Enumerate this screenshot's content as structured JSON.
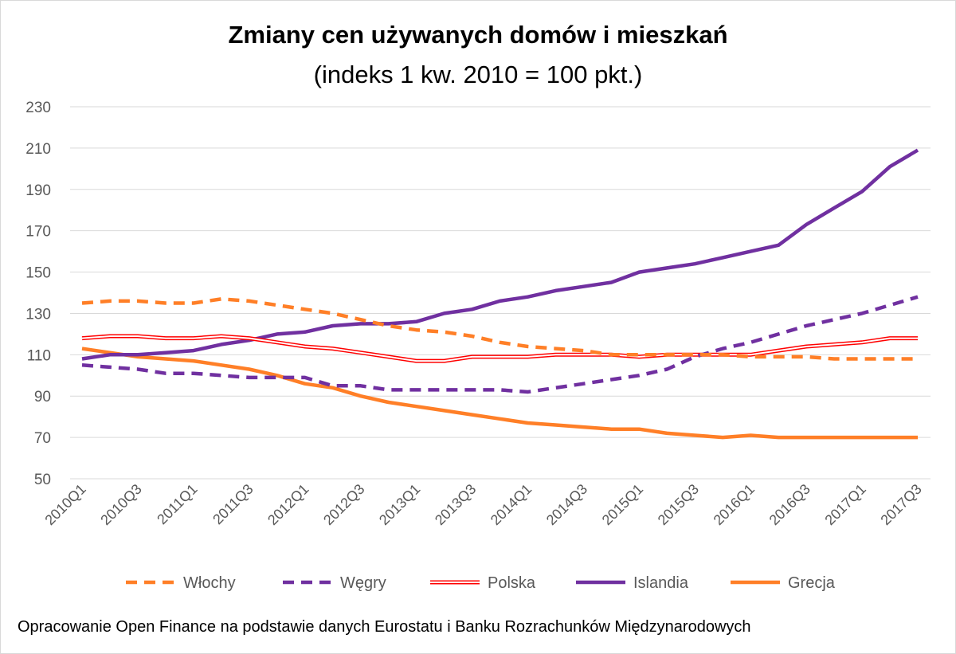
{
  "chart_data": {
    "type": "line",
    "title": "Zmiany cen używanych domów i mieszkań",
    "subtitle": "(indeks 1 kw. 2010 = 100 pkt.)",
    "source": "Opracowanie Open Finance na podstawie danych Eurostatu i Banku Rozrachunków Międzynarodowych",
    "ylim": [
      50,
      230
    ],
    "yticks": [
      50,
      70,
      90,
      110,
      130,
      150,
      170,
      190,
      210,
      230
    ],
    "grid": true,
    "legend_position": "bottom",
    "x": [
      "2010Q1",
      "2010Q2",
      "2010Q3",
      "2010Q4",
      "2011Q1",
      "2011Q2",
      "2011Q3",
      "2011Q4",
      "2012Q1",
      "2012Q2",
      "2012Q3",
      "2012Q4",
      "2013Q1",
      "2013Q2",
      "2013Q3",
      "2013Q4",
      "2014Q1",
      "2014Q2",
      "2014Q3",
      "2014Q4",
      "2015Q1",
      "2015Q2",
      "2015Q3",
      "2015Q4",
      "2016Q1",
      "2016Q2",
      "2016Q3",
      "2016Q4",
      "2017Q1",
      "2017Q2",
      "2017Q3"
    ],
    "x_tick_labels": [
      "2010Q1",
      "2010Q3",
      "2011Q1",
      "2011Q3",
      "2012Q1",
      "2012Q3",
      "2013Q1",
      "2013Q3",
      "2014Q1",
      "2014Q3",
      "2015Q1",
      "2015Q3",
      "2016Q1",
      "2016Q3",
      "2017Q1",
      "2017Q3"
    ],
    "series": [
      {
        "name": "Włochy",
        "color": "#ff7f27",
        "style": "dashed",
        "values": [
          135,
          136,
          136,
          135,
          135,
          137,
          136,
          134,
          132,
          130,
          127,
          124,
          122,
          121,
          119,
          116,
          114,
          113,
          112,
          110,
          110,
          110,
          110,
          110,
          109,
          109,
          109,
          108,
          108,
          108,
          108
        ]
      },
      {
        "name": "Węgry",
        "color": "#7030a0",
        "style": "dashed",
        "values": [
          105,
          104,
          103,
          101,
          101,
          100,
          99,
          99,
          99,
          95,
          95,
          93,
          93,
          93,
          93,
          93,
          92,
          94,
          96,
          98,
          100,
          103,
          109,
          113,
          116,
          120,
          124,
          127,
          130,
          134,
          138
        ]
      },
      {
        "name": "Polska",
        "color": "#ff0000",
        "style": "double",
        "values": [
          118,
          119,
          119,
          118,
          118,
          119,
          118,
          116,
          114,
          113,
          111,
          109,
          107,
          107,
          109,
          109,
          109,
          110,
          110,
          110,
          109,
          110,
          110,
          110,
          110,
          112,
          114,
          115,
          116,
          118,
          118
        ]
      },
      {
        "name": "Islandia",
        "color": "#7030a0",
        "style": "solid",
        "values": [
          108,
          110,
          110,
          111,
          112,
          115,
          117,
          120,
          121,
          124,
          125,
          125,
          126,
          130,
          132,
          136,
          138,
          141,
          143,
          145,
          150,
          152,
          154,
          157,
          160,
          163,
          173,
          181,
          189,
          201,
          209
        ]
      },
      {
        "name": "Grecja",
        "color": "#ff7f27",
        "style": "solid",
        "values": [
          113,
          111,
          109,
          108,
          107,
          105,
          103,
          100,
          96,
          94,
          90,
          87,
          85,
          83,
          81,
          79,
          77,
          76,
          75,
          74,
          74,
          72,
          71,
          70,
          71,
          70,
          70,
          70,
          70,
          70,
          70
        ]
      }
    ]
  }
}
